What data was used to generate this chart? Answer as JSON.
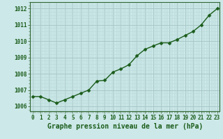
{
  "x": [
    0,
    1,
    2,
    3,
    4,
    5,
    6,
    7,
    8,
    9,
    10,
    11,
    12,
    13,
    14,
    15,
    16,
    17,
    18,
    19,
    20,
    21,
    22,
    23
  ],
  "y": [
    1006.6,
    1006.6,
    1006.4,
    1006.2,
    1006.4,
    1006.6,
    1006.8,
    1007.0,
    1007.55,
    1007.6,
    1008.1,
    1008.3,
    1008.55,
    1009.1,
    1009.5,
    1009.7,
    1009.9,
    1009.9,
    1010.1,
    1010.35,
    1010.6,
    1011.0,
    1011.6,
    1012.0
  ],
  "line_color": "#1a5c1a",
  "marker": "D",
  "marker_size": 2.5,
  "line_width": 1.0,
  "bg_color": "#cce8e8",
  "grid_color_minor": "#b8d8d8",
  "grid_color_major": "#a8c8c8",
  "xlabel": "Graphe pression niveau de la mer (hPa)",
  "xlabel_fontsize": 7,
  "xlabel_color": "#1a5c1a",
  "ytick_labels": [
    "1006",
    "1007",
    "1008",
    "1009",
    "1010",
    "1011",
    "1012"
  ],
  "ytick_values": [
    1006,
    1007,
    1008,
    1009,
    1010,
    1011,
    1012
  ],
  "ylim": [
    1005.7,
    1012.4
  ],
  "xlim": [
    -0.3,
    23.3
  ],
  "xtick_fontsize": 5.5,
  "ytick_fontsize": 5.5,
  "tick_color": "#1a5c1a",
  "spine_color": "#336633"
}
